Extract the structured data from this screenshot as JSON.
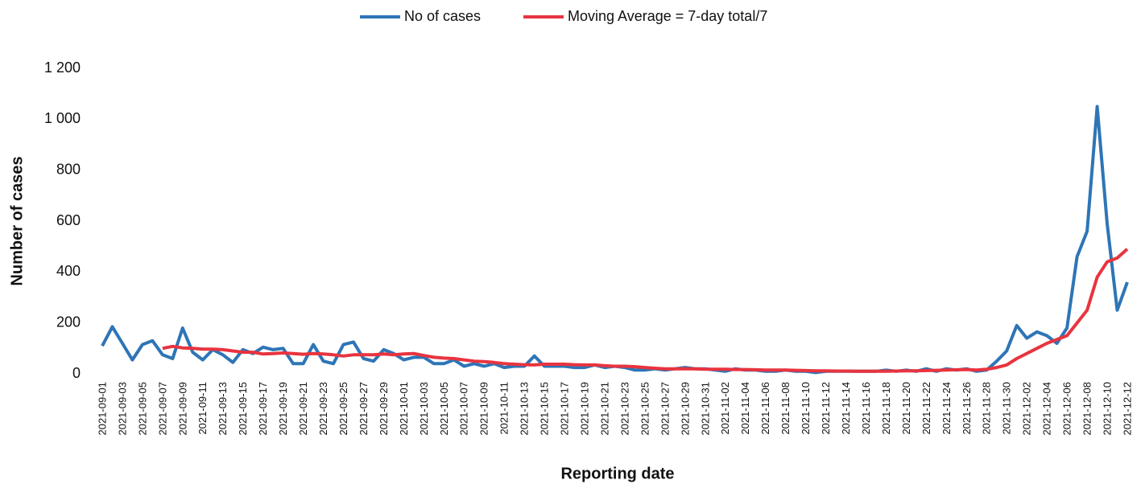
{
  "chart_data": {
    "type": "line",
    "x_label": "Reporting date",
    "y_label": "Number of cases",
    "categories": [
      "2021-09-01",
      null,
      "2021-09-03",
      null,
      "2021-09-05",
      null,
      "2021-09-07",
      null,
      "2021-09-09",
      null,
      "2021-09-11",
      null,
      "2021-09-13",
      null,
      "2021-09-15",
      null,
      "2021-09-17",
      null,
      "2021-09-19",
      null,
      "2021-09-21",
      null,
      "2021-09-23",
      null,
      "2021-09-25",
      null,
      "2021-09-27",
      null,
      "2021-09-29",
      null,
      "2021-10-01",
      null,
      "2021-10-03",
      null,
      "2021-10-05",
      null,
      "2021-10-07",
      null,
      "2021-10-09",
      null,
      "2021-10-11",
      null,
      "2021-10-13",
      null,
      "2021-10-15",
      null,
      "2021-10-17",
      null,
      "2021-10-19",
      null,
      "2021-10-21",
      null,
      "2021-10-23",
      null,
      "2021-10-25",
      null,
      "2021-10-27",
      null,
      "2021-10-29",
      null,
      "2021-10-31",
      null,
      "2021-11-02",
      null,
      "2021-11-04",
      null,
      "2021-11-06",
      null,
      "2021-11-08",
      null,
      "2021-11-10",
      null,
      "2021-11-12",
      null,
      "2021-11-14",
      null,
      "2021-11-16",
      null,
      "2021-11-18",
      null,
      "2021-11-20",
      null,
      "2021-11-22",
      null,
      "2021-11-24",
      null,
      "2021-11-26",
      null,
      "2021-11-28",
      null,
      "2021-11-30",
      null,
      "2021-12-02",
      null,
      "2021-12-04",
      null,
      "2021-12-06",
      null,
      "2021-12-08",
      null,
      "2021-12-10",
      null,
      "2021-12-12"
    ],
    "series": [
      {
        "name": "No of cases",
        "color": "#2e75b6",
        "values": [
          110,
          185,
          120,
          55,
          115,
          130,
          75,
          60,
          180,
          85,
          55,
          95,
          75,
          45,
          95,
          80,
          105,
          95,
          100,
          40,
          40,
          115,
          50,
          40,
          115,
          125,
          60,
          50,
          95,
          80,
          55,
          65,
          65,
          40,
          40,
          55,
          30,
          40,
          30,
          40,
          25,
          30,
          30,
          70,
          30,
          30,
          30,
          25,
          25,
          35,
          25,
          30,
          25,
          15,
          15,
          20,
          15,
          20,
          25,
          20,
          20,
          15,
          10,
          20,
          15,
          15,
          10,
          10,
          15,
          10,
          10,
          5,
          10,
          10,
          10,
          10,
          10,
          10,
          15,
          10,
          15,
          10,
          20,
          10,
          20,
          15,
          20,
          10,
          15,
          50,
          90,
          190,
          140,
          165,
          150,
          120,
          180,
          460,
          560,
          1050,
          590,
          250,
          360
        ]
      },
      {
        "name": "Moving Average = 7-day total/7",
        "color": "#e8343f",
        "values": [
          null,
          null,
          null,
          null,
          null,
          null,
          100,
          108,
          102,
          100,
          97,
          97,
          95,
          90,
          85,
          85,
          78,
          80,
          82,
          80,
          77,
          80,
          78,
          75,
          70,
          75,
          75,
          75,
          78,
          75,
          78,
          80,
          72,
          65,
          62,
          60,
          55,
          50,
          48,
          45,
          40,
          38,
          36,
          35,
          38,
          38,
          38,
          36,
          35,
          35,
          32,
          30,
          30,
          28,
          25,
          22,
          20,
          20,
          20,
          20,
          18,
          18,
          18,
          17,
          17,
          16,
          15,
          15,
          15,
          14,
          13,
          12,
          12,
          11,
          11,
          10,
          10,
          10,
          10,
          11,
          12,
          12,
          13,
          14,
          15,
          16,
          17,
          15,
          18,
          25,
          35,
          60,
          80,
          100,
          120,
          135,
          150,
          200,
          250,
          380,
          440,
          455,
          490
        ]
      }
    ],
    "ylim": [
      0,
      1200
    ],
    "yticks": [
      0,
      200,
      400,
      600,
      800,
      {
        "value": 1000,
        "label": "1 000"
      },
      {
        "value": 1200,
        "label": "1 200"
      }
    ],
    "legend": "top"
  }
}
